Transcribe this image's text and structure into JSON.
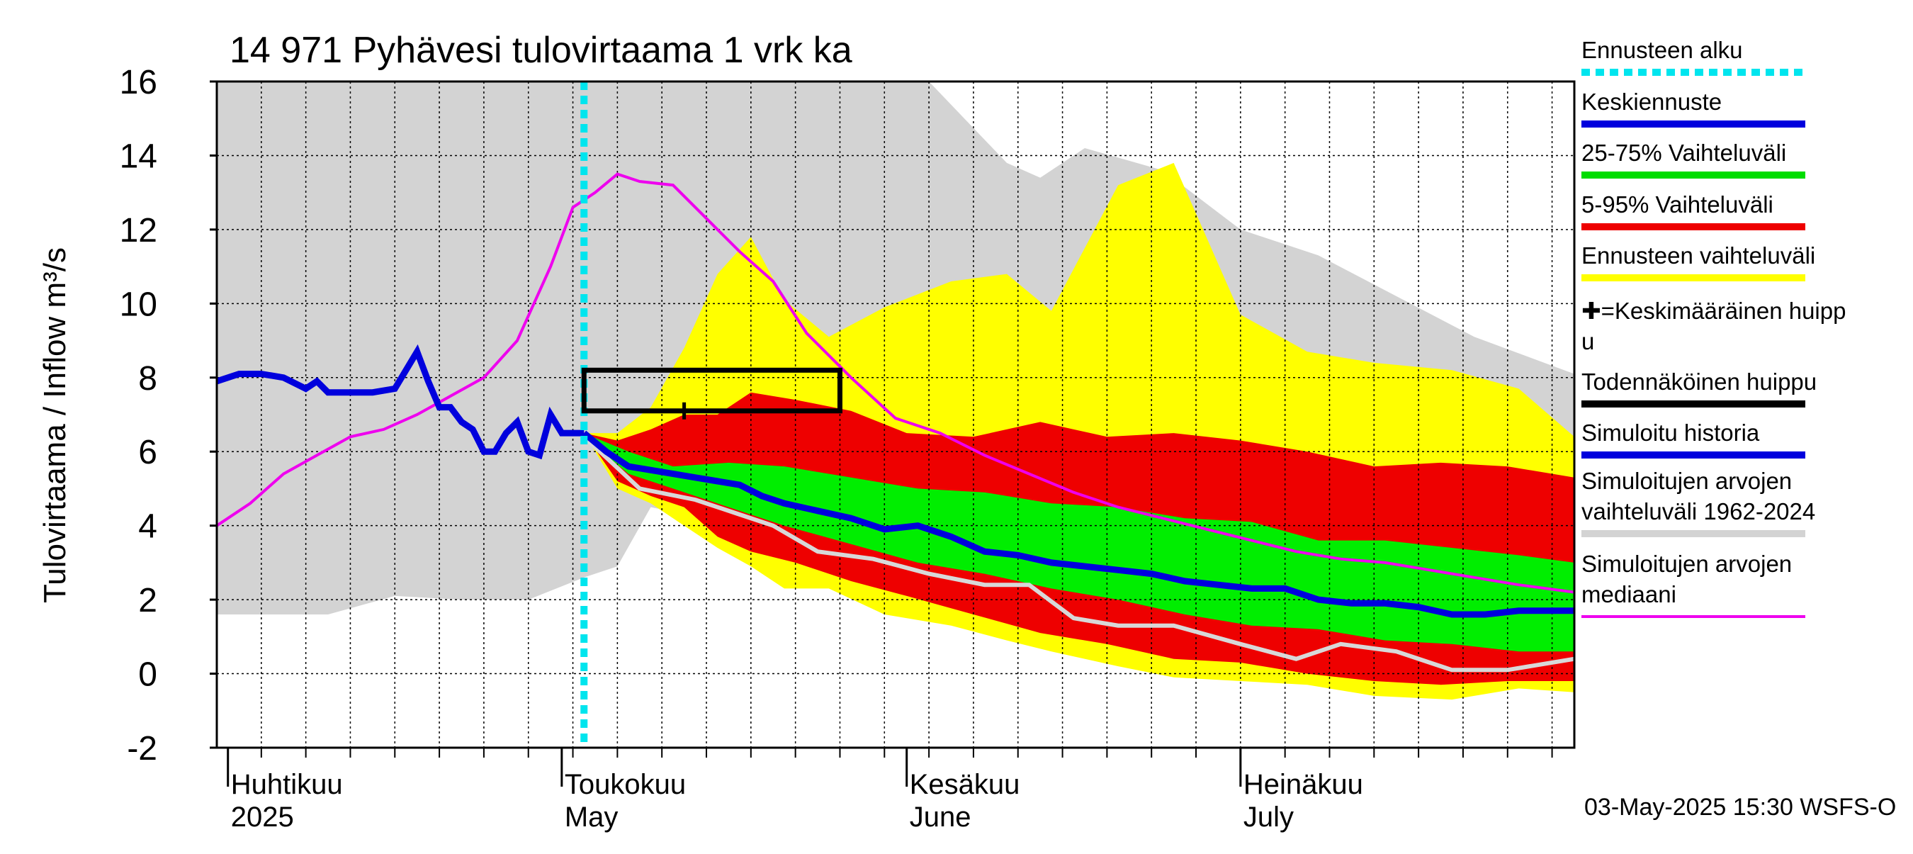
{
  "chart_data": {
    "type": "area",
    "title": "14 971 Pyhävesi tulovirtaama 1 vrk ka",
    "ylabel": "Tulovirtaama / Inflow    m³/s",
    "ylim": [
      -2,
      16
    ],
    "yticks": [
      -2,
      0,
      2,
      4,
      6,
      8,
      10,
      12,
      14,
      16
    ],
    "xlim": [
      "2025-03-31",
      "2025-07-31"
    ],
    "grid": true,
    "month_labels": [
      {
        "date": "2025-04-01",
        "fi": "Huhtikuu",
        "en": "2025"
      },
      {
        "date": "2025-05-01",
        "fi": "Toukokuu",
        "en": "May"
      },
      {
        "date": "2025-06-01",
        "fi": "Kesäkuu",
        "en": "June"
      },
      {
        "date": "2025-07-01",
        "fi": "Heinäkuu",
        "en": "July"
      }
    ],
    "forecast_start": "2025-05-03",
    "probable_peak": {
      "x_start": "2025-05-03",
      "x_end": "2025-05-26",
      "y_low": 7.1,
      "y_high": 8.2
    },
    "mean_peak": {
      "x": "2025-05-12",
      "y": 7.1
    },
    "footer": "03-May-2025 15:30 WSFS-O",
    "legend": [
      {
        "label": "Ennusteen alku",
        "color": "#00e5ee",
        "style": "dotted"
      },
      {
        "label": "Keskiennuste",
        "color": "#0000dd",
        "style": "line"
      },
      {
        "label": "25-75% Vaihteluväli",
        "color": "#00dd00",
        "style": "line"
      },
      {
        "label": "5-95% Vaihteluväli",
        "color": "#ee0000",
        "style": "line"
      },
      {
        "label": "Ennusteen vaihteluväli",
        "color": "#ffff00",
        "style": "line"
      },
      {
        "label": "✚=Keskimääräinen huipp",
        "label2": "u",
        "color": "",
        "style": "none"
      },
      {
        "label": "Todennäköinen huippu",
        "color": "#000000",
        "style": "line"
      },
      {
        "label": "Simuloitu historia",
        "color": "#0000dd",
        "style": "line"
      },
      {
        "label": "Simuloitujen arvojen",
        "label2": "vaihteluväli 1962-2024",
        "color": "#d3d3d3",
        "style": "line"
      },
      {
        "label": "Simuloitujen arvojen",
        "label2": "mediaani",
        "color": "#ee00ee",
        "style": "thin"
      }
    ],
    "colors": {
      "hist_band": "#d3d3d3",
      "fc_band": "#ffff00",
      "band_5_95": "#ee0000",
      "band_25_75": "#00ee00",
      "mean": "#0000dd",
      "median": "#ee00ee",
      "fc_grey": "#d3d3d3"
    },
    "series": {
      "sim_history": {
        "x": [
          "2025-03-31",
          "2025-04-02",
          "2025-04-04",
          "2025-04-06",
          "2025-04-08",
          "2025-04-09",
          "2025-04-10",
          "2025-04-12",
          "2025-04-14",
          "2025-04-16",
          "2025-04-18",
          "2025-04-19",
          "2025-04-20",
          "2025-04-21",
          "2025-04-22",
          "2025-04-23",
          "2025-04-24",
          "2025-04-25",
          "2025-04-26",
          "2025-04-27",
          "2025-04-28",
          "2025-04-29",
          "2025-04-30",
          "2025-05-01",
          "2025-05-02",
          "2025-05-03"
        ],
        "y": [
          7.9,
          8.1,
          8.1,
          8.0,
          7.7,
          7.9,
          7.6,
          7.6,
          7.6,
          7.7,
          8.7,
          7.9,
          7.2,
          7.2,
          6.8,
          6.6,
          6.0,
          6.0,
          6.5,
          6.8,
          6.0,
          5.9,
          7.0,
          6.5,
          6.5,
          6.5
        ]
      },
      "hist_range": {
        "x": [
          "2025-03-31",
          "2025-04-10",
          "2025-04-16",
          "2025-04-22",
          "2025-04-28",
          "2025-05-03",
          "2025-05-06",
          "2025-05-09",
          "2025-05-14",
          "2025-05-20",
          "2025-05-27",
          "2025-06-03",
          "2025-06-10",
          "2025-06-13",
          "2025-06-17",
          "2025-06-24",
          "2025-07-01",
          "2025-07-08",
          "2025-07-15",
          "2025-07-22",
          "2025-07-31"
        ],
        "low": [
          1.6,
          1.6,
          2.1,
          2.0,
          2.0,
          2.6,
          2.9,
          4.5,
          4.2,
          4.3,
          4.3,
          4.6,
          4.8,
          6.6,
          6.0,
          5.8,
          5.3,
          5.4,
          5.5,
          5.8,
          6.0
        ],
        "high": [
          16,
          16,
          16,
          16,
          16,
          16,
          16,
          16,
          16,
          16,
          16,
          16,
          13.8,
          13.4,
          14.2,
          13.6,
          12.0,
          11.3,
          10.2,
          9.1,
          8.1
        ]
      },
      "forecast_range": {
        "x": [
          "2025-05-03",
          "2025-05-06",
          "2025-05-09",
          "2025-05-12",
          "2025-05-15",
          "2025-05-18",
          "2025-05-21",
          "2025-05-25",
          "2025-05-30",
          "2025-06-05",
          "2025-06-10",
          "2025-06-14",
          "2025-06-20",
          "2025-06-25",
          "2025-07-01",
          "2025-07-07",
          "2025-07-13",
          "2025-07-20",
          "2025-07-26",
          "2025-07-31"
        ],
        "low": [
          6.5,
          5.0,
          4.6,
          4.0,
          3.4,
          2.9,
          2.3,
          2.3,
          1.6,
          1.3,
          0.9,
          0.6,
          0.2,
          -0.1,
          -0.2,
          -0.3,
          -0.6,
          -0.7,
          -0.4,
          -0.5
        ],
        "high": [
          6.5,
          6.5,
          7.2,
          8.8,
          10.8,
          11.8,
          10.1,
          9.1,
          9.9,
          10.6,
          10.8,
          9.8,
          13.2,
          13.8,
          9.7,
          8.7,
          8.4,
          8.2,
          7.7,
          6.4
        ]
      },
      "band_5_95": {
        "x": [
          "2025-05-03",
          "2025-05-06",
          "2025-05-09",
          "2025-05-12",
          "2025-05-15",
          "2025-05-18",
          "2025-05-22",
          "2025-05-27",
          "2025-06-01",
          "2025-06-07",
          "2025-06-13",
          "2025-06-19",
          "2025-06-25",
          "2025-07-01",
          "2025-07-07",
          "2025-07-13",
          "2025-07-19",
          "2025-07-25",
          "2025-07-31"
        ],
        "low": [
          6.5,
          5.2,
          4.8,
          4.5,
          3.7,
          3.3,
          3.0,
          2.5,
          2.1,
          1.6,
          1.1,
          0.8,
          0.4,
          0.3,
          0.0,
          -0.2,
          -0.3,
          -0.2,
          -0.2
        ],
        "high": [
          6.5,
          6.3,
          6.6,
          7.0,
          7.0,
          7.6,
          7.4,
          7.1,
          6.5,
          6.4,
          6.8,
          6.4,
          6.5,
          6.3,
          6.0,
          5.6,
          5.7,
          5.6,
          5.3
        ]
      },
      "band_25_75": {
        "x": [
          "2025-05-03",
          "2025-05-07",
          "2025-05-11",
          "2025-05-16",
          "2025-05-21",
          "2025-05-27",
          "2025-06-02",
          "2025-06-08",
          "2025-06-14",
          "2025-06-20",
          "2025-06-26",
          "2025-07-02",
          "2025-07-08",
          "2025-07-14",
          "2025-07-20",
          "2025-07-26",
          "2025-07-31"
        ],
        "low": [
          6.4,
          5.4,
          5.0,
          4.5,
          4.0,
          3.5,
          3.0,
          2.7,
          2.3,
          2.0,
          1.6,
          1.3,
          1.2,
          0.9,
          0.8,
          0.6,
          0.6
        ],
        "high": [
          6.5,
          6.0,
          5.6,
          5.7,
          5.6,
          5.3,
          5.0,
          4.9,
          4.6,
          4.5,
          4.2,
          4.1,
          3.6,
          3.6,
          3.4,
          3.2,
          3.0
        ]
      },
      "mean_forecast": {
        "x": [
          "2025-05-03",
          "2025-05-05",
          "2025-05-07",
          "2025-05-09",
          "2025-05-11",
          "2025-05-13",
          "2025-05-15",
          "2025-05-17",
          "2025-05-19",
          "2025-05-21",
          "2025-05-24",
          "2025-05-27",
          "2025-05-30",
          "2025-06-02",
          "2025-06-05",
          "2025-06-08",
          "2025-06-11",
          "2025-06-14",
          "2025-06-17",
          "2025-06-20",
          "2025-06-23",
          "2025-06-26",
          "2025-06-29",
          "2025-07-02",
          "2025-07-05",
          "2025-07-08",
          "2025-07-11",
          "2025-07-14",
          "2025-07-17",
          "2025-07-20",
          "2025-07-23",
          "2025-07-26",
          "2025-07-29",
          "2025-07-31"
        ],
        "y": [
          6.5,
          6.0,
          5.6,
          5.5,
          5.4,
          5.3,
          5.2,
          5.1,
          4.8,
          4.6,
          4.4,
          4.2,
          3.9,
          4.0,
          3.7,
          3.3,
          3.2,
          3.0,
          2.9,
          2.8,
          2.7,
          2.5,
          2.4,
          2.3,
          2.3,
          2.0,
          1.9,
          1.9,
          1.8,
          1.6,
          1.6,
          1.7,
          1.7,
          1.7
        ]
      },
      "median": {
        "x": [
          "2025-03-31",
          "2025-04-03",
          "2025-04-06",
          "2025-04-09",
          "2025-04-12",
          "2025-04-15",
          "2025-04-18",
          "2025-04-21",
          "2025-04-24",
          "2025-04-27",
          "2025-04-30",
          "2025-05-02",
          "2025-05-04",
          "2025-05-06",
          "2025-05-08",
          "2025-05-11",
          "2025-05-14",
          "2025-05-17",
          "2025-05-20",
          "2025-05-23",
          "2025-05-27",
          "2025-05-31",
          "2025-06-04",
          "2025-06-08",
          "2025-06-12",
          "2025-06-16",
          "2025-06-20",
          "2025-06-24",
          "2025-06-28",
          "2025-07-02",
          "2025-07-06",
          "2025-07-10",
          "2025-07-14",
          "2025-07-18",
          "2025-07-22",
          "2025-07-26",
          "2025-07-31"
        ],
        "y": [
          4.0,
          4.6,
          5.4,
          5.9,
          6.4,
          6.6,
          7.0,
          7.5,
          8.0,
          9.0,
          11.0,
          12.6,
          13.0,
          13.5,
          13.3,
          13.2,
          12.3,
          11.4,
          10.6,
          9.2,
          8.0,
          6.9,
          6.5,
          5.9,
          5.4,
          4.9,
          4.5,
          4.2,
          3.9,
          3.6,
          3.3,
          3.1,
          3.0,
          2.8,
          2.6,
          2.4,
          2.2
        ]
      },
      "sim_median_forecast": {
        "x": [
          "2025-05-03",
          "2025-05-08",
          "2025-05-13",
          "2025-05-17",
          "2025-05-20",
          "2025-05-24",
          "2025-05-29",
          "2025-06-03",
          "2025-06-08",
          "2025-06-12",
          "2025-06-16",
          "2025-06-20",
          "2025-06-25",
          "2025-07-01",
          "2025-07-06",
          "2025-07-10",
          "2025-07-15",
          "2025-07-20",
          "2025-07-25",
          "2025-07-31"
        ],
        "y": [
          6.4,
          5.0,
          4.7,
          4.3,
          4.0,
          3.3,
          3.1,
          2.7,
          2.4,
          2.4,
          1.5,
          1.3,
          1.3,
          0.8,
          0.4,
          0.8,
          0.6,
          0.1,
          0.1,
          0.4
        ]
      }
    }
  }
}
